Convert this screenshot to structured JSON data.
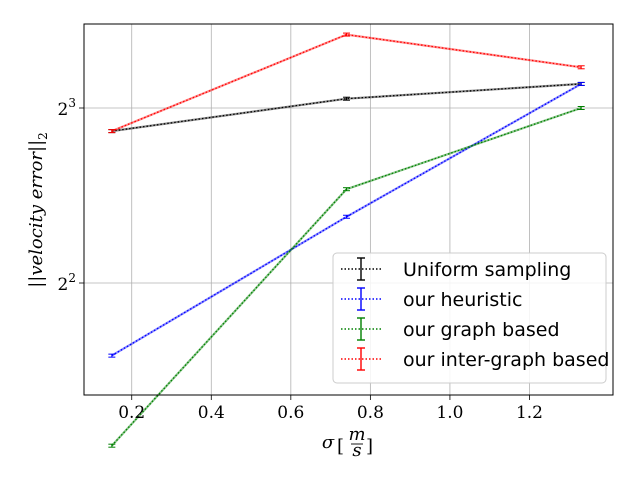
{
  "chart_data": {
    "type": "line",
    "xlabel": "σ",
    "xlabel_unit_num": "m",
    "xlabel_unit_den": "s",
    "ylabel": "||velocity error||",
    "ylabel_sub": "2",
    "x": [
      0.15,
      0.74,
      1.33
    ],
    "xlim": [
      0.08,
      1.41
    ],
    "ylim_log2": [
      1.36,
      3.48
    ],
    "yscale": "log2",
    "xticks": [
      0.2,
      0.4,
      0.6,
      0.8,
      1.0,
      1.2
    ],
    "xtick_labels": [
      "0.2",
      "0.4",
      "0.6",
      "0.8",
      "1.0",
      "1.2"
    ],
    "yticks": [
      4,
      8
    ],
    "ytick_base": "2",
    "ytick_exponents": [
      "2",
      "3"
    ],
    "grid": true,
    "legend_position": "lower-right",
    "series": [
      {
        "name": "Uniform sampling",
        "color": "#000000",
        "values": [
          7.3,
          8.3,
          8.8
        ]
      },
      {
        "name": "our heuristic",
        "color": "#0000ff",
        "values": [
          3.0,
          5.2,
          8.8
        ]
      },
      {
        "name": "our graph based",
        "color": "#008000",
        "values": [
          2.1,
          5.8,
          8.0
        ]
      },
      {
        "name": "our inter-graph based",
        "color": "#ff0000",
        "values": [
          7.3,
          10.7,
          9.4
        ]
      }
    ]
  }
}
